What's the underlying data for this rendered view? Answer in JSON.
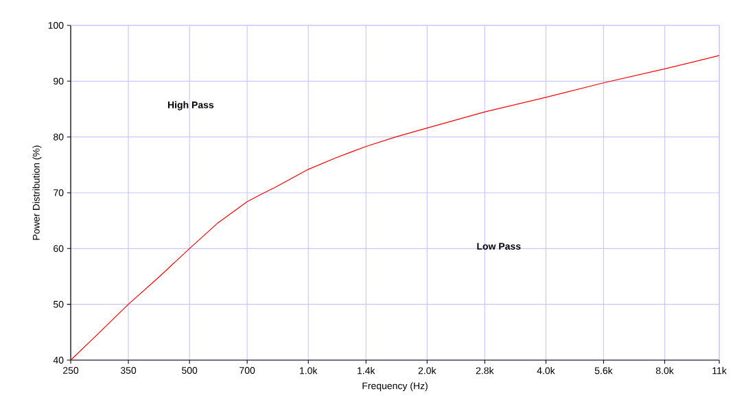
{
  "chart_data": {
    "type": "line",
    "xlabel": "Frequency (Hz)",
    "ylabel": "Power Distribution (%)",
    "log": "x",
    "annotations": [
      "High Pass",
      "Low Pass"
    ],
    "x": [
      250,
      296,
      350,
      420,
      500,
      590,
      700,
      758,
      820,
      1000,
      1178,
      1400,
      1665,
      2000,
      2800,
      4000,
      5600,
      8000,
      11000
    ],
    "series": [
      {
        "color": "#ff0000",
        "values": [
          40,
          45,
          50,
          55,
          60,
          64.6,
          68.4,
          69.7,
          70.9,
          74.2,
          76.3,
          78.3,
          80.0,
          81.6,
          84.5,
          87.1,
          89.7,
          92.2,
          94.6
        ]
      }
    ],
    "xlim": [
      250,
      11000
    ],
    "xticks": [
      250,
      350,
      500,
      700,
      {
        "value": 1000,
        "label": "1.0k"
      },
      {
        "value": 1400,
        "label": "1.4k"
      },
      {
        "value": 2000,
        "label": "2.0k"
      },
      {
        "value": 2800,
        "label": "2.8k"
      },
      {
        "value": 4000,
        "label": "4.0k"
      },
      {
        "value": 5600,
        "label": "5.6k"
      },
      {
        "value": 8000,
        "label": "8.0k"
      },
      {
        "value": 11000,
        "label": "11k"
      }
    ],
    "ylim": [
      40,
      100
    ],
    "yticks": [
      40,
      50,
      60,
      70,
      80,
      90,
      100
    ],
    "grid": true,
    "marker": "none",
    "line_style": "solid"
  }
}
